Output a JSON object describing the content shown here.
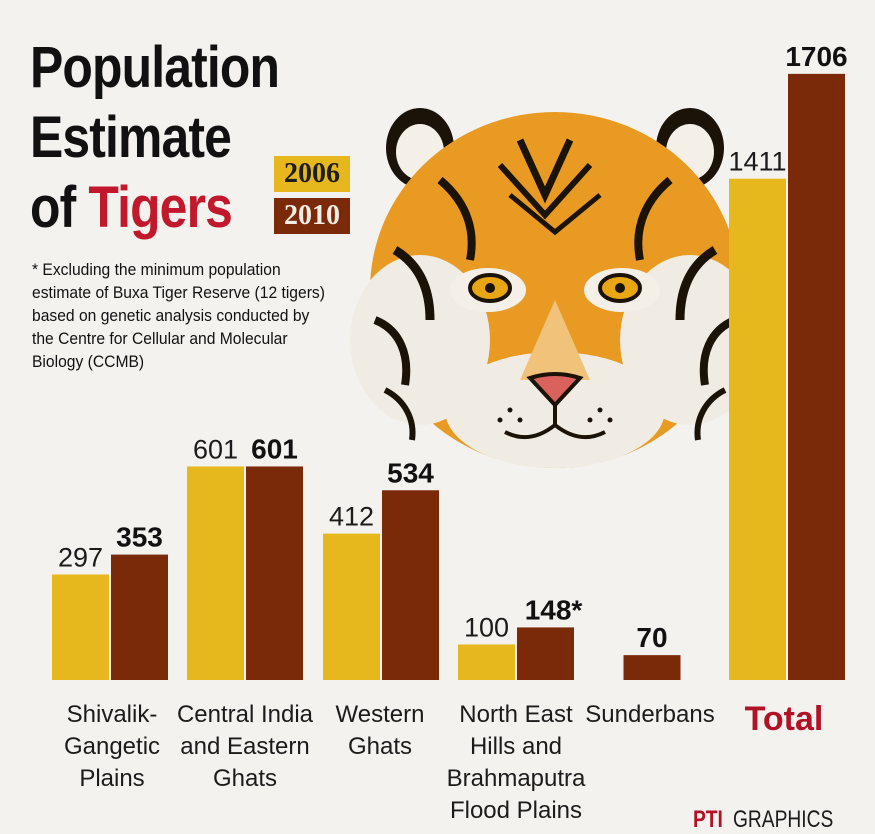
{
  "title": {
    "line1": "Population",
    "line2": "Estimate",
    "line3_prefix": "of",
    "line3_highlight": "Tigers"
  },
  "legend": [
    "2006",
    "2010"
  ],
  "footnote": "* Excluding the minimum population estimate of Buxa Tiger Reserve (12 tigers) based on genetic analysis conducted by the Centre for Cellular and Molecular Biology (CCMB)",
  "credit": {
    "brand": "PTI",
    "suffix": "GRAPHICS"
  },
  "colors": {
    "series_2006": "#e6b81e",
    "series_2010": "#7a2a08",
    "title_text": "#111111",
    "title_accent": "#c2182b",
    "total_label": "#b11226",
    "background": "#f4f2ef",
    "tiger_orange": "#e89a22",
    "tiger_stripe": "#1b1208"
  },
  "chart_data": {
    "type": "bar",
    "title": "Population Estimate of Tigers",
    "categories": [
      [
        "Shivalik-",
        "Gangetic",
        "Plains"
      ],
      [
        "Central India",
        "and Eastern",
        "Ghats"
      ],
      [
        "Western",
        "Ghats"
      ],
      [
        "North East",
        "Hills and",
        "Brahmaputra",
        "Flood Plains"
      ],
      [
        "Sunderbans"
      ],
      [
        "Total"
      ]
    ],
    "series": [
      {
        "name": "2006",
        "values": [
          297,
          601,
          412,
          100,
          null,
          1411
        ],
        "labels": [
          "297",
          "601",
          "412",
          "100",
          "",
          "1411"
        ]
      },
      {
        "name": "2010",
        "values": [
          353,
          601,
          534,
          148,
          70,
          1706
        ],
        "labels": [
          "353",
          "601",
          "534",
          "148*",
          "70",
          "1706"
        ]
      }
    ],
    "highlighted_category": "Total",
    "legend_position": "top-left",
    "grid": false
  }
}
